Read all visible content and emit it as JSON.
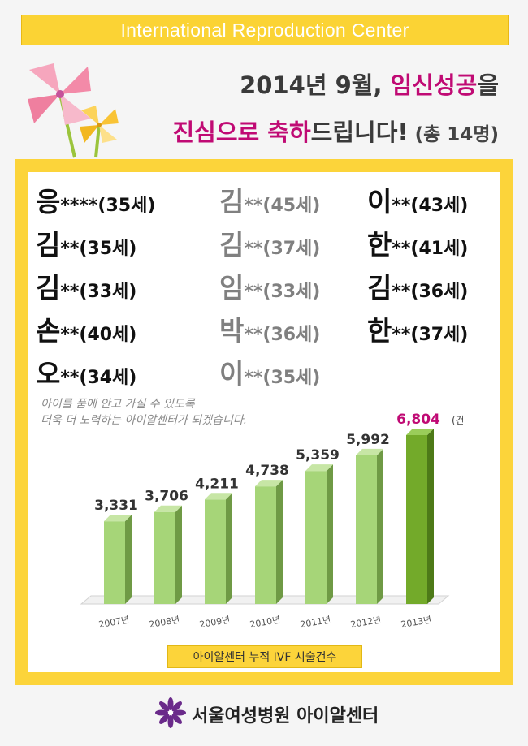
{
  "banner": {
    "title": "International Reproduction Center"
  },
  "headline": {
    "line1_pre": "2014년 9월, ",
    "line1_highlight": "임신성공",
    "line1_post": "을",
    "line2_highlight": "진심으로 축하",
    "line2_post": "드립니다!",
    "line2_count": " (총 14명)"
  },
  "names": [
    {
      "name": "응",
      "stars": "****",
      "age": "(35세)",
      "col": 0,
      "row": 0,
      "tone": "dark"
    },
    {
      "name": "김",
      "stars": "**",
      "age": "(45세)",
      "col": 1,
      "row": 0,
      "tone": "gray"
    },
    {
      "name": "이",
      "stars": "**",
      "age": "(43세)",
      "col": 2,
      "row": 0,
      "tone": "dark"
    },
    {
      "name": "김",
      "stars": "**",
      "age": "(35세)",
      "col": 0,
      "row": 1,
      "tone": "dark"
    },
    {
      "name": "김",
      "stars": "**",
      "age": "(37세)",
      "col": 1,
      "row": 1,
      "tone": "gray"
    },
    {
      "name": "한",
      "stars": "**",
      "age": "(41세)",
      "col": 2,
      "row": 1,
      "tone": "dark"
    },
    {
      "name": "김",
      "stars": "**",
      "age": "(33세)",
      "col": 0,
      "row": 2,
      "tone": "dark"
    },
    {
      "name": "임",
      "stars": "**",
      "age": "(33세)",
      "col": 1,
      "row": 2,
      "tone": "gray"
    },
    {
      "name": "김",
      "stars": "**",
      "age": "(36세)",
      "col": 2,
      "row": 2,
      "tone": "dark"
    },
    {
      "name": "손",
      "stars": "**",
      "age": "(40세)",
      "col": 0,
      "row": 3,
      "tone": "dark"
    },
    {
      "name": "박",
      "stars": "**",
      "age": "(36세)",
      "col": 1,
      "row": 3,
      "tone": "gray"
    },
    {
      "name": "한",
      "stars": "**",
      "age": "(37세)",
      "col": 2,
      "row": 3,
      "tone": "dark"
    },
    {
      "name": "오",
      "stars": "**",
      "age": "(34세)",
      "col": 0,
      "row": 4,
      "tone": "dark"
    },
    {
      "name": "이",
      "stars": "**",
      "age": "(35세)",
      "col": 1,
      "row": 4,
      "tone": "gray"
    }
  ],
  "message": {
    "line1": "아이를 품에 안고 가실 수 있도록",
    "line2": "더욱 더 노력하는 아이알센터가 되겠습니다."
  },
  "chart_data": {
    "type": "bar",
    "categories": [
      "2007년",
      "2008년",
      "2009년",
      "2010년",
      "2011년",
      "2012년",
      "2013년"
    ],
    "values": [
      3331,
      3706,
      4211,
      4738,
      5359,
      5992,
      6804
    ],
    "value_labels": [
      "3,331",
      "3,706",
      "4,211",
      "4,738",
      "5,359",
      "5,992",
      "6,804"
    ],
    "unit": "(건)",
    "highlight_index": 6,
    "colors": {
      "bar": "#a6d578",
      "bar_side": "#6f9a45",
      "bar_top": "#c7e6a5",
      "highlight": "#73aa2a",
      "highlight_side": "#4d7a18",
      "highlight_top": "#9acd5a",
      "highlight_label": "#c00a74",
      "label": "#333333"
    },
    "ylim": [
      0,
      7000
    ]
  },
  "caption": "아이알센터 누적 IVF 시술건수",
  "footer": {
    "text": "서울여성병원 아이알센터"
  },
  "colors": {
    "accent_yellow": "#fcd43a",
    "accent_magenta": "#c00a74",
    "logo_purple": "#6a2a8a"
  }
}
